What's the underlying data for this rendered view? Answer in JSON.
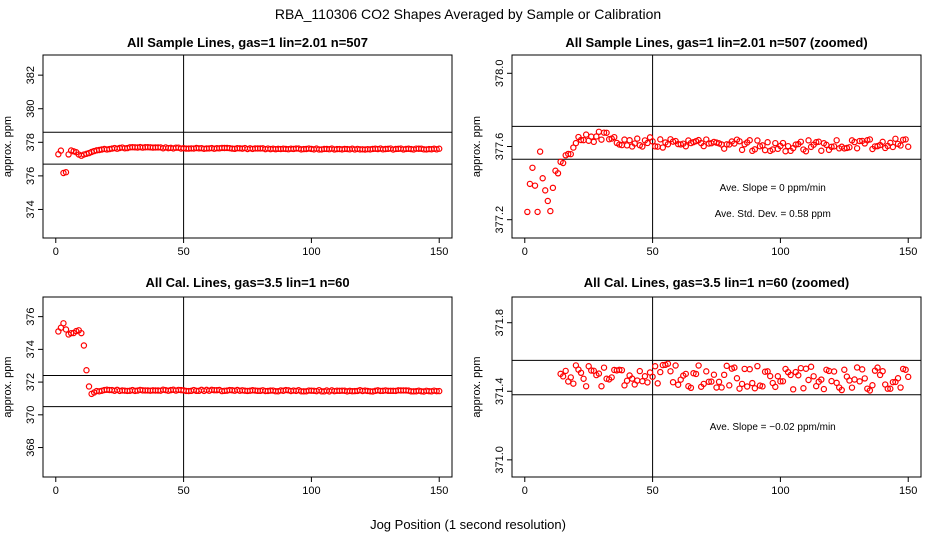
{
  "figure": {
    "title": "RBA_110306  CO2 Shapes Averaged by Sample or Calibration",
    "xlabel": "Jog Position (1 second resolution)"
  },
  "colors": {
    "points": "#ff0000",
    "axes": "#000000",
    "background": "#ffffff"
  },
  "chart_data": [
    {
      "type": "scatter",
      "title": "All Sample Lines, gas=1 lin=2.01 n=507",
      "ylabel": "approx. ppm",
      "xlim": [
        -5,
        155
      ],
      "ylim": [
        372.3,
        383.2
      ],
      "xticks": [
        0,
        50,
        100,
        150
      ],
      "yticks": [
        374,
        376,
        378,
        380,
        382
      ],
      "vline": 50,
      "hlines": [
        376.7,
        378.6
      ],
      "annotations": [],
      "series": [
        {
          "name": "CO2",
          "anchors": [
            [
              1,
              377.3
            ],
            [
              2,
              377.5
            ],
            [
              3,
              376.2
            ],
            [
              4,
              376.2
            ],
            [
              5,
              377.3
            ],
            [
              6,
              377.5
            ],
            [
              8,
              377.4
            ],
            [
              10,
              377.2
            ],
            [
              12,
              377.3
            ],
            [
              15,
              377.5
            ],
            [
              20,
              377.6
            ],
            [
              30,
              377.7
            ],
            [
              50,
              377.65
            ],
            [
              100,
              377.6
            ],
            [
              150,
              377.6
            ]
          ],
          "noise": 0.03
        }
      ]
    },
    {
      "type": "scatter",
      "title": "All Sample Lines, gas=1 lin=2.01 n=507 (zoomed)",
      "ylabel": "approx. ppm",
      "xlim": [
        -5,
        155
      ],
      "ylim": [
        377.1,
        378.1
      ],
      "xticks": [
        0,
        50,
        100,
        150
      ],
      "yticks": [
        377.2,
        377.6,
        378.0
      ],
      "vline": 50,
      "hlines": [
        377.53,
        377.71
      ],
      "annotations": [
        "Ave. Slope =  0  ppm/min",
        "Ave. Std. Dev. =  0.58  ppm"
      ],
      "series": [
        {
          "name": "CO2",
          "anchors": [
            [
              1,
              377.25
            ],
            [
              3,
              377.5
            ],
            [
              5,
              377.22
            ],
            [
              6,
              377.55
            ],
            [
              8,
              377.35
            ],
            [
              10,
              377.25
            ],
            [
              12,
              377.45
            ],
            [
              14,
              377.5
            ],
            [
              16,
              377.55
            ],
            [
              20,
              377.62
            ],
            [
              30,
              377.66
            ],
            [
              40,
              377.63
            ],
            [
              60,
              377.62
            ],
            [
              100,
              377.6
            ],
            [
              150,
              377.62
            ]
          ],
          "noise": 0.03
        }
      ]
    },
    {
      "type": "scatter",
      "title": "All Cal. Lines, gas=3.5 lin=1 n=60",
      "ylabel": "approx. ppm",
      "xlim": [
        -5,
        155
      ],
      "ylim": [
        366.2,
        377.2
      ],
      "xticks": [
        0,
        50,
        100,
        150
      ],
      "yticks": [
        368,
        370,
        372,
        374,
        376
      ],
      "vline": 50,
      "hlines": [
        370.5,
        372.4
      ],
      "annotations": [],
      "series": [
        {
          "name": "CO2",
          "anchors": [
            [
              1,
              375.1
            ],
            [
              3,
              375.6
            ],
            [
              5,
              374.9
            ],
            [
              7,
              375.0
            ],
            [
              9,
              375.2
            ],
            [
              10,
              375.0
            ],
            [
              11,
              374.2
            ],
            [
              12,
              372.7
            ],
            [
              13,
              371.7
            ],
            [
              14,
              371.3
            ],
            [
              16,
              371.45
            ],
            [
              20,
              371.5
            ],
            [
              30,
              371.5
            ],
            [
              150,
              371.45
            ]
          ],
          "noise": 0.04
        }
      ]
    },
    {
      "type": "scatter",
      "title": "All Cal. Lines, gas=3.5 lin=1 n=60 (zoomed)",
      "ylabel": "approx. ppm",
      "xlim": [
        -5,
        155
      ],
      "ylim": [
        370.9,
        371.95
      ],
      "xticks": [
        0,
        50,
        100,
        150
      ],
      "yticks": [
        371.0,
        371.4,
        371.8
      ],
      "vline": 50,
      "hlines": [
        371.38,
        371.58
      ],
      "annotations": [
        "Ave. Slope =  −0.02  ppm/min"
      ],
      "series": [
        {
          "name": "CO2",
          "start": 14,
          "anchors": [
            [
              14,
              371.5
            ],
            [
              150,
              371.47
            ]
          ],
          "noise": 0.07
        }
      ]
    }
  ]
}
